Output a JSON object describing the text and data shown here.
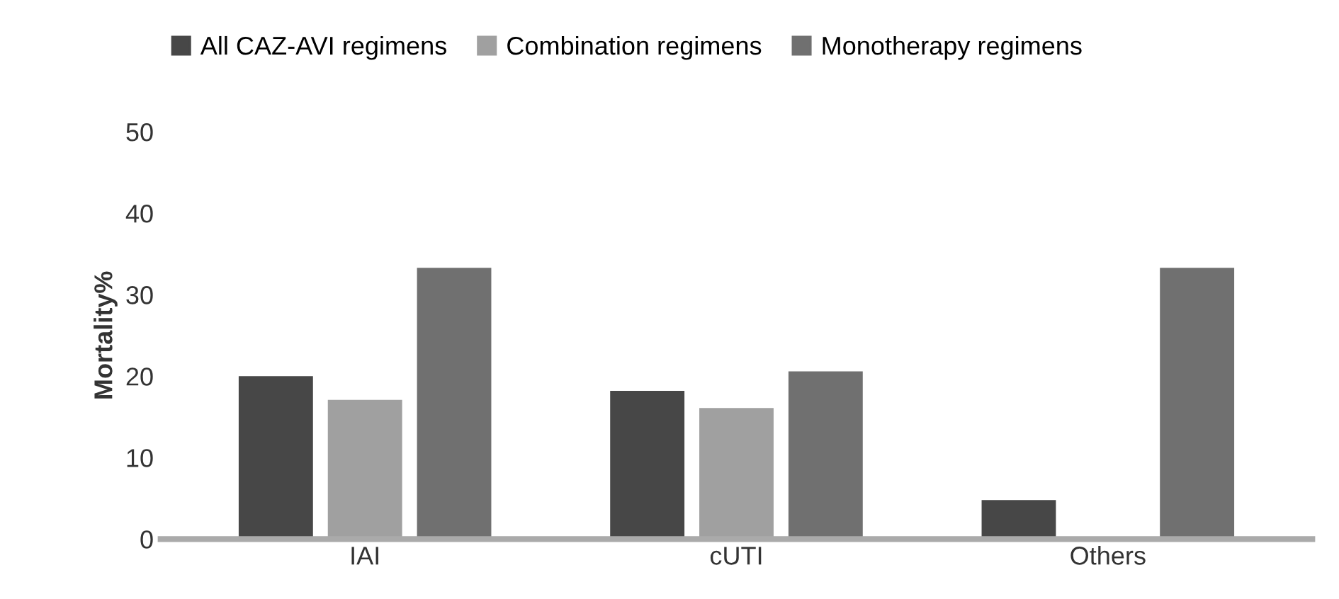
{
  "chart_data": {
    "type": "bar",
    "ylabel": "Mortality%",
    "categories": [
      "IAI",
      "cUTI",
      "Others"
    ],
    "series": [
      {
        "name": "All CAZ-AVI regimens",
        "color": "#474747",
        "values": [
          20.0,
          18.2,
          4.8
        ]
      },
      {
        "name": "Combination regimens",
        "color": "#a0a0a0",
        "values": [
          17.1,
          16.1,
          0
        ]
      },
      {
        "name": "Monotherapy regimens",
        "color": "#707070",
        "values": [
          33.3,
          20.6,
          33.3
        ]
      }
    ],
    "ylim": [
      0,
      50
    ],
    "yticks": [
      0,
      10,
      20,
      30,
      40,
      50
    ],
    "grid": false,
    "legend": "top left"
  }
}
